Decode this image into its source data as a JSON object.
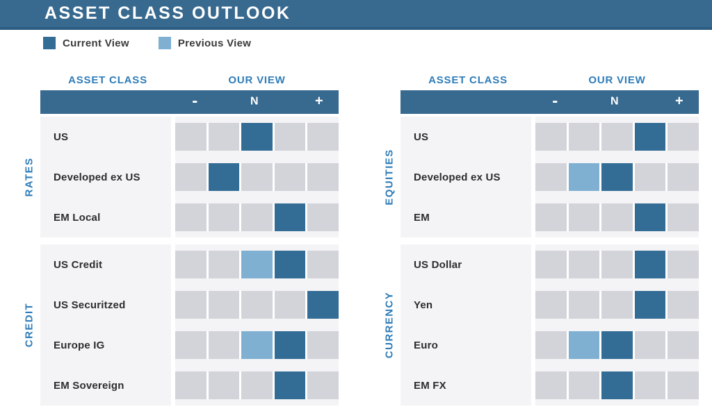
{
  "columns": {
    "asset_class": "ASSET CLASS",
    "our_view": "OUR VIEW"
  },
  "colors": {
    "header_bar": "#38698f",
    "header_bar_edge": "#2d5c82",
    "current": "#336d96",
    "previous": "#7fb0d1",
    "empty_cell": "#d2d4da",
    "panel_bg": "#f4f4f6",
    "accent_text": "#2e7cb8"
  },
  "chart_data": {
    "type": "heatmap",
    "title": "ASSET CLASS OUTLOOK",
    "scale_labels": [
      "-",
      "N",
      "+"
    ],
    "scale_positions": 5,
    "scale_note": "positions 1-5 from most negative (-) through neutral (N, position 3) to most positive (+)",
    "legend": [
      {
        "name": "Current View",
        "color": "#336d96"
      },
      {
        "name": "Previous View",
        "color": "#7fb0d1"
      }
    ],
    "panels": [
      {
        "groups": [
          {
            "name": "RATES",
            "rows": [
              {
                "asset": "US",
                "current": 3,
                "previous": null
              },
              {
                "asset": "Developed ex US",
                "current": 2,
                "previous": null
              },
              {
                "asset": "EM Local",
                "current": 4,
                "previous": null
              }
            ]
          },
          {
            "name": "CREDIT",
            "rows": [
              {
                "asset": "US Credit",
                "current": 4,
                "previous": 3
              },
              {
                "asset": "US Securitzed",
                "current": 5,
                "previous": null
              },
              {
                "asset": "Europe IG",
                "current": 4,
                "previous": 3
              },
              {
                "asset": "EM Sovereign",
                "current": 4,
                "previous": null
              }
            ]
          }
        ]
      },
      {
        "groups": [
          {
            "name": "EQUITIES",
            "rows": [
              {
                "asset": "US",
                "current": 4,
                "previous": null
              },
              {
                "asset": "Developed ex US",
                "current": 3,
                "previous": 2
              },
              {
                "asset": "EM",
                "current": 4,
                "previous": null
              }
            ]
          },
          {
            "name": "CURRENCY",
            "rows": [
              {
                "asset": "US Dollar",
                "current": 4,
                "previous": null
              },
              {
                "asset": "Yen",
                "current": 4,
                "previous": null
              },
              {
                "asset": "Euro",
                "current": 3,
                "previous": 2
              },
              {
                "asset": "EM FX",
                "current": 3,
                "previous": null
              }
            ]
          }
        ]
      }
    ]
  }
}
